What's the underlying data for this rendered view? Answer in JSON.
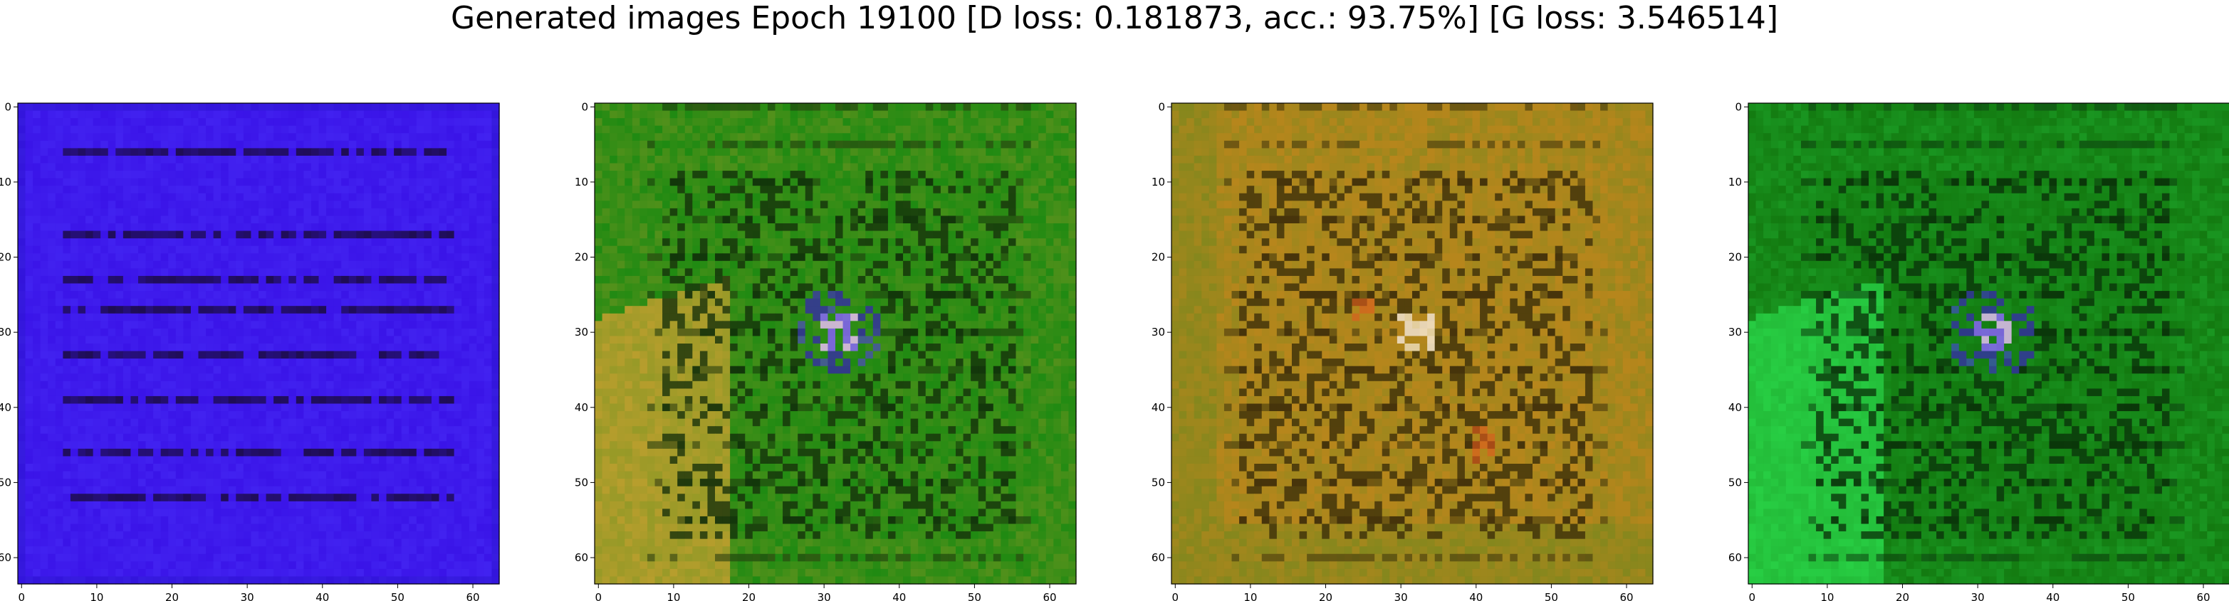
{
  "title": "Generated images Epoch 19100 [D loss: 0.181873, acc.: 93.75%] [G loss: 3.546514]",
  "chart_data": [
    {
      "type": "heatmap",
      "title": "",
      "xlabel": "",
      "ylabel": "",
      "xlim": [
        -0.5,
        63.5
      ],
      "ylim": [
        63.5,
        -0.5
      ],
      "xticks": [
        0,
        10,
        20,
        30,
        40,
        50,
        60
      ],
      "yticks": [
        0,
        10,
        20,
        30,
        40,
        50,
        60
      ],
      "colors": {
        "base": "#3a14e8",
        "dark": "#1a0a40",
        "accent": "#6a4cff"
      },
      "description_marks": "dark horizontal streaks"
    },
    {
      "type": "heatmap",
      "title": "",
      "xlabel": "",
      "ylabel": "",
      "xlim": [
        -0.5,
        63.5
      ],
      "ylim": [
        63.5,
        -0.5
      ],
      "xticks": [
        0,
        10,
        20,
        30,
        40,
        50,
        60
      ],
      "yticks": [
        0,
        10,
        20,
        30,
        40,
        50,
        60
      ],
      "colors": {
        "base": "#1f8a12",
        "dark": "#0a2a08",
        "accent": "#c9a030",
        "highlight": "#f0c0ff"
      }
    },
    {
      "type": "heatmap",
      "title": "",
      "xlabel": "",
      "ylabel": "",
      "xlim": [
        -0.5,
        63.5
      ],
      "ylim": [
        63.5,
        -0.5
      ],
      "xticks": [
        0,
        10,
        20,
        30,
        40,
        50,
        60
      ],
      "yticks": [
        0,
        10,
        20,
        30,
        40,
        50,
        60
      ],
      "colors": {
        "base": "#b8861c",
        "dark": "#3a2808",
        "accent": "#2a8a20",
        "highlight": "#f0e0c0"
      }
    },
    {
      "type": "heatmap",
      "title": "",
      "xlabel": "",
      "ylabel": "",
      "xlim": [
        -0.5,
        63.5
      ],
      "ylim": [
        63.5,
        -0.5
      ],
      "xticks": [
        0,
        10,
        20,
        30,
        40,
        50,
        60
      ],
      "yticks": [
        0,
        10,
        20,
        30,
        40,
        50,
        60
      ],
      "colors": {
        "base": "#137a10",
        "dark": "#082a06",
        "accent": "#2ad84a",
        "highlight": "#f0c0ff"
      }
    }
  ]
}
